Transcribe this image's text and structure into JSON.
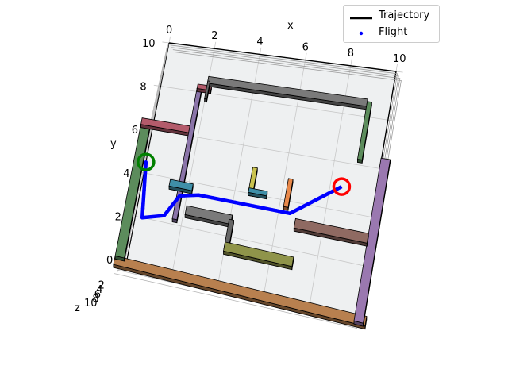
{
  "chart_data": {
    "type": "3d-line",
    "axes": {
      "x_label": "x",
      "y_label": "y",
      "z_label": "z",
      "x_ticks": [
        "0",
        "2",
        "4",
        "6",
        "8",
        "10"
      ],
      "y_ticks": [
        "0",
        "2",
        "4",
        "6",
        "8",
        "10"
      ],
      "z_ticks": [
        "0",
        "2",
        "4",
        "6",
        "8",
        "10"
      ],
      "xlim": [
        0,
        10
      ],
      "ylim": [
        0,
        10
      ],
      "zlim": [
        0,
        10
      ],
      "grid": true
    },
    "legend": {
      "position": "top-right",
      "entries": [
        {
          "label": "Trajectory",
          "style": "line",
          "color": "#000000"
        },
        {
          "label": "Flight",
          "style": "dot",
          "color": "#0000ff"
        }
      ]
    },
    "start": {
      "x": 0,
      "y": 4.5,
      "color": "#008000"
    },
    "goal": {
      "x": 8.5,
      "y": 5.0,
      "color": "#ff0000"
    },
    "trajectory": [
      {
        "x": 0.0,
        "y": 4.5
      },
      {
        "x": 0.3,
        "y": 2.0
      },
      {
        "x": 1.2,
        "y": 2.3
      },
      {
        "x": 1.7,
        "y": 3.3
      },
      {
        "x": 2.5,
        "y": 3.5
      },
      {
        "x": 6.5,
        "y": 3.5
      },
      {
        "x": 8.5,
        "y": 5.0
      }
    ],
    "obstacles": [
      {
        "x0": -0.5,
        "y0": -0.5,
        "x1": 10.5,
        "y1": -0.1,
        "color": "#b8804f"
      },
      {
        "x0": 10.0,
        "y0": -0.4,
        "x1": 10.4,
        "y1": 6.3,
        "color": "#9a78b0"
      },
      {
        "x0": -0.5,
        "y0": -0.1,
        "x1": -0.1,
        "y1": 6.0,
        "color": "#5c8c5c"
      },
      {
        "x0": -0.5,
        "y0": 6.0,
        "x1": 1.6,
        "y1": 6.3,
        "color": "#b35b6b"
      },
      {
        "x0": 1.6,
        "y0": 2.1,
        "x1": 1.8,
        "y1": 8.0,
        "color": "#8a74a8"
      },
      {
        "x0": 1.6,
        "y0": 8.0,
        "x1": 2.2,
        "y1": 8.2,
        "color": "#b35b6b"
      },
      {
        "x0": 2.0,
        "y0": 8.3,
        "x1": 9.0,
        "y1": 8.6,
        "color": "#7a7a7a"
      },
      {
        "x0": 2.0,
        "y0": 7.6,
        "x1": 2.1,
        "y1": 8.4,
        "color": "#666666"
      },
      {
        "x0": 9.0,
        "y0": 6.1,
        "x1": 9.2,
        "y1": 8.5,
        "color": "#5c8c5c"
      },
      {
        "x0": 1.2,
        "y0": 3.5,
        "x1": 2.2,
        "y1": 3.8,
        "color": "#3f8fa8"
      },
      {
        "x0": 4.6,
        "y0": 3.9,
        "x1": 4.8,
        "y1": 5.0,
        "color": "#c9c24f"
      },
      {
        "x0": 4.6,
        "y0": 3.9,
        "x1": 5.4,
        "y1": 4.1,
        "color": "#3f8fa8"
      },
      {
        "x0": 6.2,
        "y0": 3.6,
        "x1": 6.4,
        "y1": 4.8,
        "color": "#e8884a"
      },
      {
        "x0": 2.1,
        "y0": 2.4,
        "x1": 4.1,
        "y1": 2.8,
        "color": "#7a7a7a"
      },
      {
        "x0": 4.0,
        "y0": 1.3,
        "x1": 4.2,
        "y1": 2.6,
        "color": "#666666"
      },
      {
        "x0": 4.0,
        "y0": 1.2,
        "x1": 7.0,
        "y1": 1.6,
        "color": "#8f944a"
      },
      {
        "x0": 6.8,
        "y0": 2.8,
        "x1": 10.0,
        "y1": 3.2,
        "color": "#8f6a62"
      }
    ]
  }
}
